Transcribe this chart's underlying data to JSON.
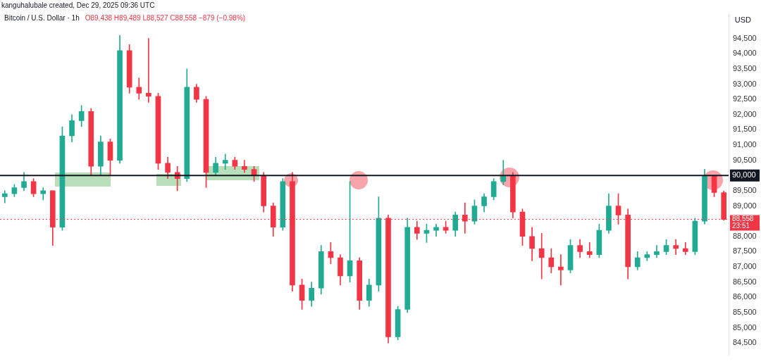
{
  "chart_data": {
    "type": "candlestick",
    "title": "Bitcoin / U.S. Dollar · 1h",
    "subtitle": "O89,438 H89,489 L88,527 C88,558 −879 (−0.98%)",
    "ylabel": "USD",
    "annotations": [
      "kanguhalubale created, Dec 29, 2025 09:36 UTC"
    ],
    "categories": [
      null,
      null,
      null,
      null,
      null,
      null,
      null,
      null,
      null,
      null,
      null,
      null,
      null,
      null,
      null,
      null,
      null,
      null,
      null,
      null,
      null,
      null,
      null,
      null,
      null,
      null,
      null,
      null,
      null,
      null,
      null,
      null,
      null,
      null,
      null,
      null,
      null,
      null,
      null,
      null,
      null,
      null,
      null,
      null,
      null,
      null,
      null,
      null,
      null,
      null,
      null,
      null,
      null,
      null,
      null,
      null,
      null,
      null,
      null,
      null,
      null,
      null,
      null,
      null,
      null,
      null,
      null,
      null,
      null,
      null,
      null,
      null,
      null,
      null,
      null,
      null
    ],
    "ohlc": [
      [
        89300,
        89500,
        89100,
        89400
      ],
      [
        89400,
        89700,
        89300,
        89600
      ],
      [
        89600,
        90100,
        89500,
        89800
      ],
      [
        89800,
        89900,
        89300,
        89400
      ],
      [
        89400,
        89600,
        89200,
        89500
      ],
      [
        89500,
        89500,
        87700,
        88300
      ],
      [
        88300,
        91600,
        88200,
        91300
      ],
      [
        91300,
        92000,
        91100,
        91800
      ],
      [
        91800,
        92300,
        91600,
        92100
      ],
      [
        92100,
        92200,
        90000,
        90300
      ],
      [
        90300,
        91300,
        90000,
        91100
      ],
      [
        91100,
        91200,
        90000,
        90500
      ],
      [
        90500,
        94600,
        90400,
        94100
      ],
      [
        94100,
        94300,
        92700,
        92900
      ],
      [
        92900,
        93200,
        92500,
        92700
      ],
      [
        92700,
        94500,
        92400,
        92600
      ],
      [
        92600,
        92700,
        90200,
        90400
      ],
      [
        90400,
        90600,
        89900,
        90100
      ],
      [
        90100,
        90300,
        89500,
        89900
      ],
      [
        89900,
        93500,
        89800,
        92900
      ],
      [
        92900,
        93000,
        92400,
        92500
      ],
      [
        92500,
        92600,
        89600,
        90100
      ],
      [
        90100,
        90600,
        90000,
        90400
      ],
      [
        90400,
        90700,
        90200,
        90500
      ],
      [
        90500,
        90600,
        90200,
        90300
      ],
      [
        90300,
        90500,
        90100,
        90200
      ],
      [
        90200,
        90300,
        89800,
        90000
      ],
      [
        90000,
        90100,
        88800,
        89000
      ],
      [
        89000,
        89100,
        88000,
        88300
      ],
      [
        88300,
        89900,
        88200,
        89800
      ],
      [
        89800,
        90100,
        86200,
        86400
      ],
      [
        86400,
        86600,
        85600,
        85900
      ],
      [
        85900,
        86500,
        85700,
        86300
      ],
      [
        86300,
        87700,
        86100,
        87500
      ],
      [
        87500,
        87800,
        87100,
        87300
      ],
      [
        87300,
        87400,
        86400,
        86700
      ],
      [
        86700,
        89800,
        86500,
        87200
      ],
      [
        87200,
        87300,
        85600,
        85900
      ],
      [
        85900,
        86600,
        85700,
        86400
      ],
      [
        86400,
        89300,
        86200,
        88600
      ],
      [
        88600,
        88700,
        84500,
        84700
      ],
      [
        84700,
        85700,
        84600,
        85600
      ],
      [
        85600,
        88600,
        85500,
        88300
      ],
      [
        88300,
        88500,
        87900,
        88100
      ],
      [
        88100,
        88400,
        87800,
        88200
      ],
      [
        88200,
        88400,
        88000,
        88300
      ],
      [
        88300,
        88500,
        88100,
        88200
      ],
      [
        88200,
        88800,
        88000,
        88700
      ],
      [
        88700,
        89100,
        88100,
        88500
      ],
      [
        88500,
        89200,
        88400,
        89000
      ],
      [
        89000,
        89400,
        88800,
        89300
      ],
      [
        89300,
        89900,
        89200,
        89800
      ],
      [
        89800,
        90500,
        89700,
        90000
      ],
      [
        90000,
        90100,
        88600,
        88800
      ],
      [
        88800,
        88900,
        87700,
        88000
      ],
      [
        88000,
        88300,
        87200,
        87600
      ],
      [
        87600,
        88100,
        86600,
        87300
      ],
      [
        87300,
        87600,
        86800,
        87000
      ],
      [
        87000,
        87400,
        86400,
        86900
      ],
      [
        86900,
        87900,
        86800,
        87700
      ],
      [
        87700,
        87900,
        87300,
        87500
      ],
      [
        87500,
        87800,
        87300,
        87400
      ],
      [
        87400,
        88400,
        87300,
        88200
      ],
      [
        88200,
        89400,
        88100,
        89000
      ],
      [
        89000,
        89400,
        88400,
        88700
      ],
      [
        88700,
        88900,
        86600,
        87000
      ],
      [
        87000,
        87500,
        86900,
        87300
      ],
      [
        87300,
        87500,
        87200,
        87400
      ],
      [
        87400,
        87700,
        87300,
        87500
      ],
      [
        87500,
        87900,
        87400,
        87700
      ],
      [
        87700,
        87900,
        87400,
        87600
      ],
      [
        87600,
        87800,
        87400,
        87500
      ],
      [
        87500,
        88600,
        87400,
        88500
      ],
      [
        88500,
        90200,
        88400,
        90000
      ],
      [
        90000,
        90000,
        89300,
        89438
      ],
      [
        89438,
        89489,
        88527,
        88558
      ]
    ],
    "colors": [
      "#22ab94",
      "#22ab94",
      "#22ab94",
      "#f23645",
      "#22ab94",
      "#f23645",
      "#22ab94",
      "#22ab94",
      "#22ab94",
      "#f23645",
      "#22ab94",
      "#f23645",
      "#22ab94",
      "#f23645",
      "#f23645",
      "#f23645",
      "#f23645",
      "#f23645",
      "#f23645",
      "#22ab94",
      "#f23645",
      "#f23645",
      "#22ab94",
      "#22ab94",
      "#f23645",
      "#f23645",
      "#f23645",
      "#f23645",
      "#f23645",
      "#22ab94",
      "#f23645",
      "#f23645",
      "#22ab94",
      "#22ab94",
      "#f23645",
      "#f23645",
      "#22ab94",
      "#f23645",
      "#22ab94",
      "#22ab94",
      "#f23645",
      "#22ab94",
      "#22ab94",
      "#f23645",
      "#22ab94",
      "#22ab94",
      "#f23645",
      "#22ab94",
      "#f23645",
      "#22ab94",
      "#22ab94",
      "#22ab94",
      "#22ab94",
      "#f23645",
      "#f23645",
      "#f23645",
      "#f23645",
      "#f23645",
      "#f23645",
      "#22ab94",
      "#f23645",
      "#f23645",
      "#22ab94",
      "#22ab94",
      "#f23645",
      "#f23645",
      "#22ab94",
      "#22ab94",
      "#22ab94",
      "#22ab94",
      "#f23645",
      "#f23645",
      "#22ab94",
      "#22ab94",
      "#f23645",
      "#f23645"
    ],
    "ylim": [
      84100,
      95300
    ],
    "yticks": [
      {
        "value": 84500,
        "label": "84,500"
      },
      {
        "value": 85000,
        "label": "85,000"
      },
      {
        "value": 85500,
        "label": "85,500"
      },
      {
        "value": 86000,
        "label": "86,000"
      },
      {
        "value": 86500,
        "label": "86,500"
      },
      {
        "value": 87000,
        "label": "87,000"
      },
      {
        "value": 87500,
        "label": "87,500"
      },
      {
        "value": 88000,
        "label": "88,000"
      },
      {
        "value": 89000,
        "label": "89,000"
      },
      {
        "value": 89500,
        "label": "89,500"
      },
      {
        "value": 90500,
        "label": "90,500"
      },
      {
        "value": 91000,
        "label": "91,000"
      },
      {
        "value": 91500,
        "label": "91,500"
      },
      {
        "value": 92000,
        "label": "92,000"
      },
      {
        "value": 92500,
        "label": "92,500"
      },
      {
        "value": 93000,
        "label": "93,000"
      },
      {
        "value": 93500,
        "label": "93,500"
      },
      {
        "value": 94000,
        "label": "94,000"
      },
      {
        "value": 94500,
        "label": "94,500"
      }
    ],
    "tick_labels": "y",
    "legend": false,
    "ref_lines": [
      {
        "axis": "y",
        "value": 90000,
        "label": "90,000",
        "color": "#131722",
        "line_style": "solid"
      },
      {
        "axis": "y",
        "value": 88558,
        "label": "88,558\n23:51",
        "color": "#f23645",
        "line_style": "dotted"
      }
    ]
  }
}
